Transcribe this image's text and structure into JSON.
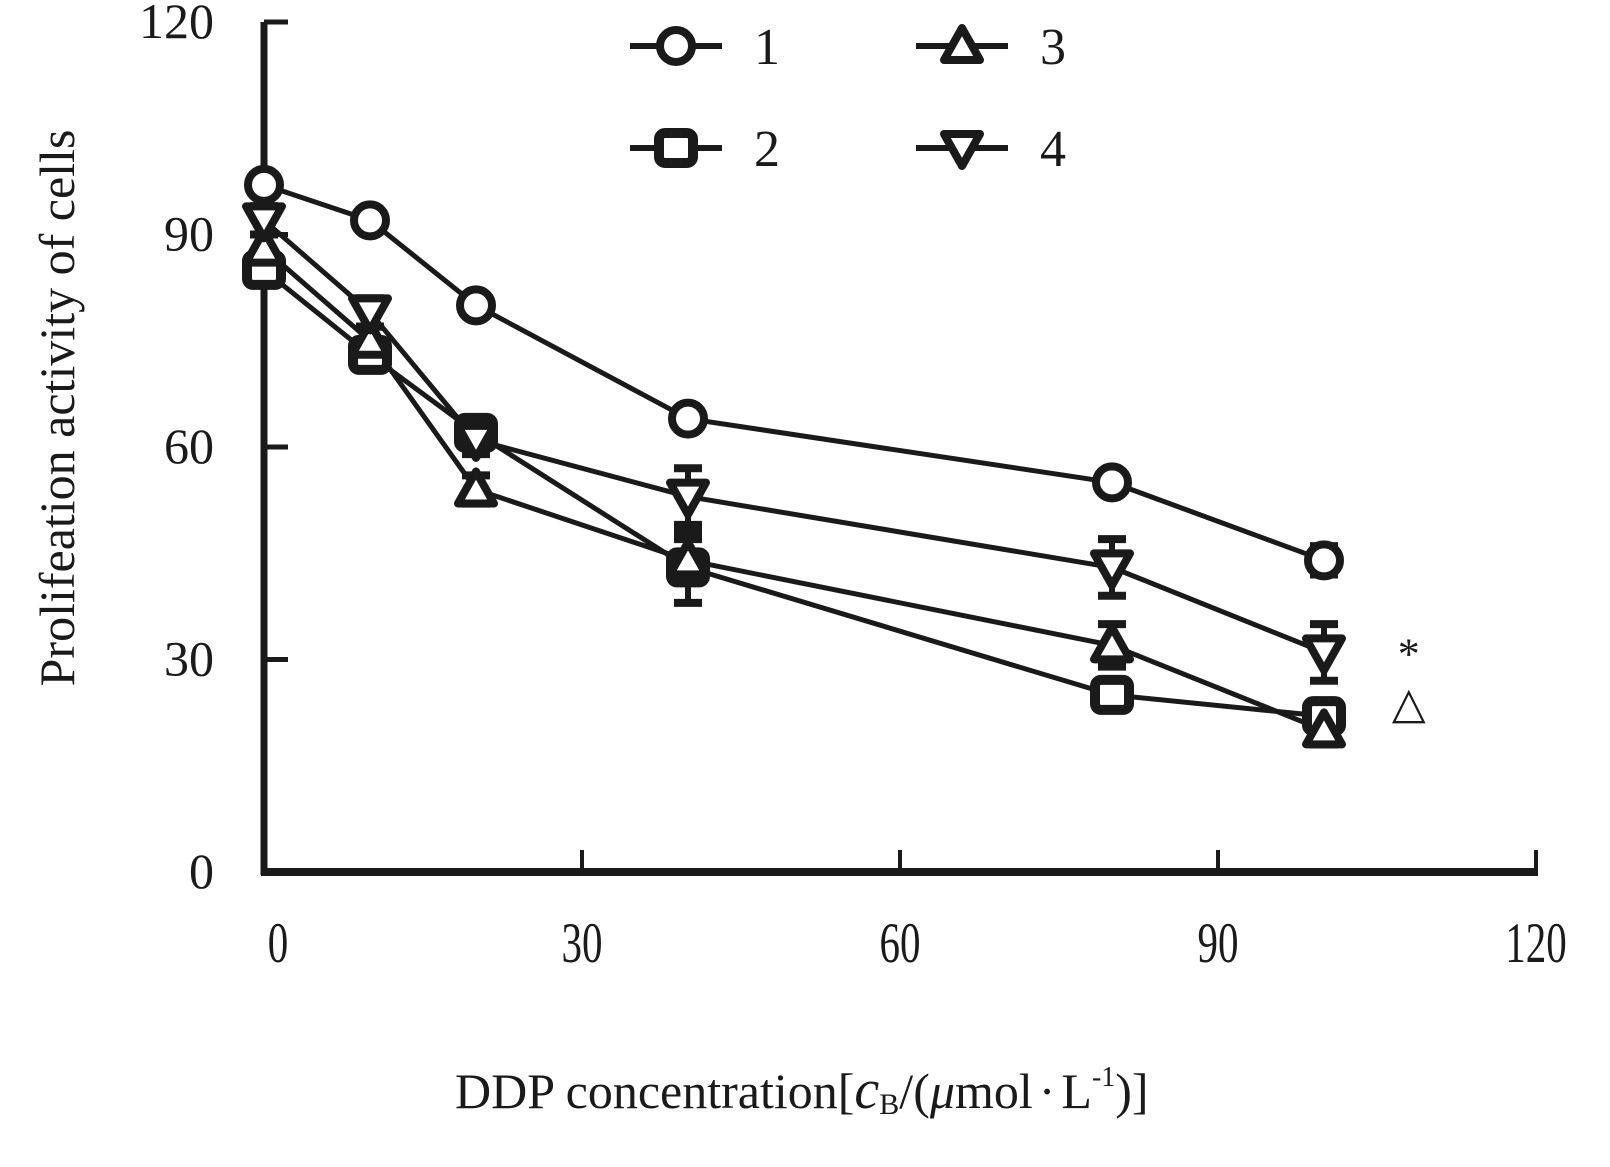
{
  "chart_data": {
    "type": "line",
    "title": "",
    "xlabel": "DDP concentration[cB/(μmol·L⁻¹)]",
    "xlabel_parts": {
      "prefix": "DDP concentration[",
      "var": "c",
      "sub": "B",
      "mid": "/(",
      "mu": "μ",
      "unit": "mol",
      "dot": "·",
      "L": "L",
      "sup": "-1",
      "suffix": ")]"
    },
    "ylabel": "Prolifeation activity of cells",
    "xlim": [
      0,
      120
    ],
    "ylim": [
      0,
      120
    ],
    "xticks": [
      0,
      30,
      60,
      90,
      120
    ],
    "yticks": [
      0,
      30,
      60,
      90,
      120
    ],
    "xtick_labels": [
      "0",
      "30",
      "60",
      "90",
      "120"
    ],
    "ytick_labels": [
      "0",
      "30",
      "60",
      "90",
      "120"
    ],
    "grid": false,
    "legend_position": "top-center",
    "x": [
      0,
      10,
      20,
      40,
      80,
      100
    ],
    "series": [
      {
        "name": "1",
        "marker": "circle",
        "values": [
          97,
          92,
          80,
          64,
          55,
          44
        ],
        "errors": [
          0,
          0,
          0,
          0,
          0,
          2
        ]
      },
      {
        "name": "2",
        "marker": "square",
        "values": [
          85,
          73,
          62,
          43,
          25,
          22
        ],
        "errors": [
          2,
          2,
          2,
          5,
          2,
          2
        ]
      },
      {
        "name": "3",
        "marker": "triangle-up",
        "values": [
          88,
          75,
          54,
          44,
          32,
          20
        ],
        "errors": [
          2,
          2,
          2,
          3,
          3,
          2
        ]
      },
      {
        "name": "4",
        "marker": "triangle-down",
        "values": [
          92,
          79,
          61,
          53,
          43,
          31
        ],
        "errors": [
          2,
          2,
          2,
          4,
          4,
          4
        ]
      }
    ],
    "annotations": [
      {
        "text": "*",
        "x": 108,
        "y": 31
      },
      {
        "text": "△",
        "x": 108,
        "y": 24
      }
    ]
  },
  "colors": {
    "ink": "#1a1a1a",
    "background": "#ffffff"
  }
}
